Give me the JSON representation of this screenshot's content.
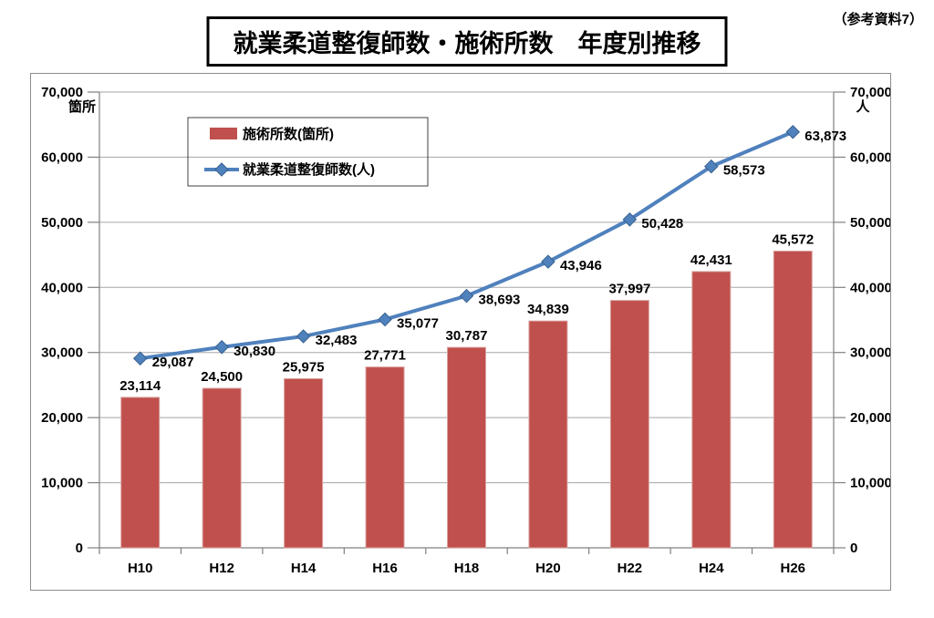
{
  "header": {
    "title": "就業柔道整復師数・施術所数　年度別推移",
    "note": "（参考資料7）"
  },
  "chart_data": {
    "type": "combo",
    "title": "就業柔道整復師数・施術所数　年度別推移",
    "categories": [
      "H10",
      "H12",
      "H14",
      "H16",
      "H18",
      "H20",
      "H22",
      "H24",
      "H26"
    ],
    "series": [
      {
        "name": "施術所数(箇所)",
        "type": "bar",
        "color": "#c0504d",
        "values": [
          23114,
          24500,
          25975,
          27771,
          30787,
          34839,
          37997,
          42431,
          45572
        ]
      },
      {
        "name": "就業柔道整復師数(人)",
        "type": "line",
        "color": "#4f81bd",
        "marker": "diamond",
        "values": [
          29087,
          30830,
          32483,
          35077,
          38693,
          43946,
          50428,
          58573,
          63873
        ]
      }
    ],
    "left_axis": {
      "unit": "箇所",
      "min": 0,
      "max": 70000,
      "step": 10000
    },
    "right_axis": {
      "unit": "人",
      "min": 0,
      "max": 70000,
      "step": 10000
    },
    "ylim": [
      0,
      70000
    ],
    "grid": true,
    "legend_position": "inside-top-left",
    "colors": {
      "gridline": "#a6a6a6",
      "axis": "#808080",
      "frame": "#8c8c8c",
      "label_text": "#000000"
    }
  }
}
